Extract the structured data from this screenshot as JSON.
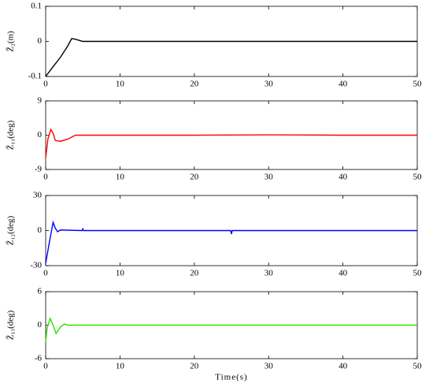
{
  "chart_data": [
    {
      "type": "line",
      "ylabel": "Z̃₂(m)",
      "x": [
        0,
        1,
        2,
        3,
        3.5,
        4,
        5,
        10,
        20,
        30,
        40,
        50
      ],
      "values": [
        -0.1,
        -0.072,
        -0.045,
        -0.012,
        0.008,
        0.006,
        0,
        0,
        0,
        0,
        0,
        0
      ],
      "color": "#000000",
      "xlim": [
        0,
        50
      ],
      "ylim": [
        -0.1,
        0.1
      ],
      "xticks": [
        0,
        10,
        20,
        30,
        40,
        50
      ],
      "yticks": [
        -0.1,
        0,
        0.1
      ]
    },
    {
      "type": "line",
      "ylabel": "Z̃₁₁(deg)",
      "x": [
        0,
        0.3,
        0.7,
        1,
        1.3,
        2,
        3,
        4,
        5,
        10,
        20,
        30,
        40,
        50
      ],
      "values": [
        -6,
        -1,
        1.5,
        0.5,
        -1.4,
        -1.6,
        -1,
        0,
        0,
        0,
        0,
        0.1,
        0,
        0
      ],
      "color": "#ff0000",
      "xlim": [
        0,
        50
      ],
      "ylim": [
        -9,
        9
      ],
      "xticks": [
        0,
        10,
        20,
        30,
        40,
        50
      ],
      "yticks": [
        -9,
        0,
        9
      ]
    },
    {
      "type": "line",
      "ylabel": "Z̃₁₂(deg)",
      "x": [
        0,
        0.5,
        1,
        1.3,
        1.6,
        2,
        4.9,
        5,
        5.1,
        10,
        24.9,
        25,
        25.1,
        30,
        40,
        50
      ],
      "values": [
        -28,
        -10,
        7,
        2,
        -1,
        0.5,
        0,
        1.5,
        0,
        0,
        0,
        -3,
        0,
        0,
        0,
        0
      ],
      "color": "#0000ff",
      "xlim": [
        0,
        50
      ],
      "ylim": [
        -30,
        30
      ],
      "xticks": [
        0,
        10,
        20,
        30,
        40,
        50
      ],
      "yticks": [
        -30,
        0,
        30
      ]
    },
    {
      "type": "line",
      "ylabel": "Z̃₁₃(deg)",
      "xlabel": "Time(s)",
      "x": [
        0,
        0.2,
        0.6,
        1,
        1.4,
        2,
        2.5,
        3,
        10,
        20,
        30,
        40,
        50
      ],
      "values": [
        -3,
        -0.5,
        1.2,
        0,
        -1.5,
        -0.3,
        0.2,
        0,
        0,
        0,
        0,
        0,
        0
      ],
      "color": "#33dd00",
      "xlim": [
        0,
        50
      ],
      "ylim": [
        -6,
        6
      ],
      "xticks": [
        0,
        10,
        20,
        30,
        40,
        50
      ],
      "yticks": [
        -6,
        0,
        6
      ]
    }
  ]
}
